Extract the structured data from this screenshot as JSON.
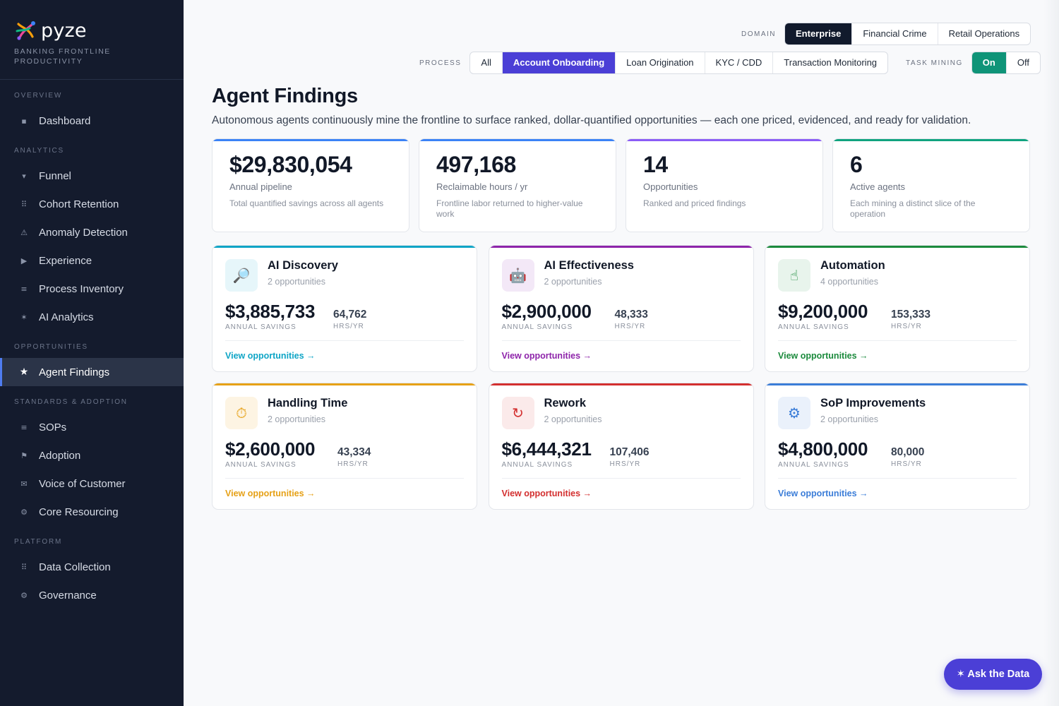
{
  "brand": {
    "name": "pyze",
    "tagline_line1": "BANKING FRONTLINE",
    "tagline_line2": "PRODUCTIVITY"
  },
  "sidebar": {
    "sections": [
      {
        "heading": "OVERVIEW",
        "items": [
          {
            "label": "Dashboard",
            "icon": "square-icon",
            "glyph": "▪"
          }
        ]
      },
      {
        "heading": "ANALYTICS",
        "items": [
          {
            "label": "Funnel",
            "icon": "funnel-icon",
            "glyph": "▾"
          },
          {
            "label": "Cohort Retention",
            "icon": "grid-icon",
            "glyph": "⠿"
          },
          {
            "label": "Anomaly Detection",
            "icon": "warning-icon",
            "glyph": "⚠"
          },
          {
            "label": "Experience",
            "icon": "play-icon",
            "glyph": "▶"
          },
          {
            "label": "Process Inventory",
            "icon": "list-icon",
            "glyph": "≡"
          },
          {
            "label": "AI Analytics",
            "icon": "sparkle-icon",
            "glyph": "✶"
          }
        ]
      },
      {
        "heading": "OPPORTUNITIES",
        "items": [
          {
            "label": "Agent Findings",
            "icon": "star-icon",
            "glyph": "★",
            "active": true
          }
        ]
      },
      {
        "heading": "STANDARDS & ADOPTION",
        "items": [
          {
            "label": "SOPs",
            "icon": "list-icon",
            "glyph": "≡"
          },
          {
            "label": "Adoption",
            "icon": "flag-icon",
            "glyph": "⚑"
          },
          {
            "label": "Voice of Customer",
            "icon": "mail-icon",
            "glyph": "✉"
          },
          {
            "label": "Core Resourcing",
            "icon": "gear-icon",
            "glyph": "⚙"
          }
        ]
      },
      {
        "heading": "PLATFORM",
        "items": [
          {
            "label": "Data Collection",
            "icon": "grid-icon",
            "glyph": "⠿"
          },
          {
            "label": "Governance",
            "icon": "gear-icon",
            "glyph": "⚙"
          }
        ]
      }
    ]
  },
  "filters": {
    "domain": {
      "label": "DOMAIN",
      "options": [
        "Enterprise",
        "Financial Crime",
        "Retail Operations"
      ],
      "selected": "Enterprise"
    },
    "process": {
      "label": "PROCESS",
      "options": [
        "All",
        "Account Onboarding",
        "Loan Origination",
        "KYC / CDD",
        "Transaction Monitoring"
      ],
      "selected": "Account Onboarding"
    },
    "task_mining": {
      "label": "TASK MINING",
      "options": [
        "On",
        "Off"
      ],
      "selected": "On"
    }
  },
  "page": {
    "title": "Agent Findings",
    "subtitle": "Autonomous agents continuously mine the frontline to surface ranked, dollar-quantified opportunities — each one priced, evidenced, and ready for validation."
  },
  "kpis": [
    {
      "value": "$29,830,054",
      "label": "Annual pipeline",
      "desc": "Total quantified savings across all agents",
      "color": "#3b82f6"
    },
    {
      "value": "497,168",
      "label": "Reclaimable hours / yr",
      "desc": "Frontline labor returned to higher-value work",
      "color": "#3b82f6"
    },
    {
      "value": "14",
      "label": "Opportunities",
      "desc": "Ranked and priced findings",
      "color": "#8b5cf6"
    },
    {
      "value": "6",
      "label": "Active agents",
      "desc": "Each mining a distinct slice of the operation",
      "color": "#10a37f"
    }
  ],
  "agents": [
    {
      "name": "AI Discovery",
      "count": "2 opportunities",
      "savings": "$3,885,733",
      "savings_label": "ANNUAL SAVINGS",
      "hours": "64,762",
      "hours_label": "HRS/YR",
      "link": "View opportunities →",
      "color": "#0ea5c6",
      "icon_bg": "#e6f6fa",
      "icon": "magnifier-icon",
      "glyph": "🔎"
    },
    {
      "name": "AI Effectiveness",
      "count": "2 opportunities",
      "savings": "$2,900,000",
      "savings_label": "ANNUAL SAVINGS",
      "hours": "48,333",
      "hours_label": "HRS/YR",
      "link": "View opportunities →",
      "color": "#8e24aa",
      "icon_bg": "#f3e8f7",
      "icon": "robot-icon",
      "glyph": "🤖"
    },
    {
      "name": "Automation",
      "count": "4 opportunities",
      "savings": "$9,200,000",
      "savings_label": "ANNUAL SAVINGS",
      "hours": "153,333",
      "hours_label": "HRS/YR",
      "link": "View opportunities →",
      "color": "#1b8a3c",
      "icon_bg": "#e8f4ec",
      "icon": "pointing-hand-icon",
      "glyph": "☝"
    },
    {
      "name": "Handling Time",
      "count": "2 opportunities",
      "savings": "$2,600,000",
      "savings_label": "ANNUAL SAVINGS",
      "hours": "43,334",
      "hours_label": "HRS/YR",
      "link": "View opportunities →",
      "color": "#e6a117",
      "icon_bg": "#fdf4e3",
      "icon": "stopwatch-icon",
      "glyph": "⏱"
    },
    {
      "name": "Rework",
      "count": "2 opportunities",
      "savings": "$6,444,321",
      "savings_label": "ANNUAL SAVINGS",
      "hours": "107,406",
      "hours_label": "HRS/YR",
      "link": "View opportunities →",
      "color": "#d32f2f",
      "icon_bg": "#fbeaea",
      "icon": "refresh-icon",
      "glyph": "↻"
    },
    {
      "name": "SoP Improvements",
      "count": "2 opportunities",
      "savings": "$4,800,000",
      "savings_label": "ANNUAL SAVINGS",
      "hours": "80,000",
      "hours_label": "HRS/YR",
      "link": "View opportunities →",
      "color": "#3b7dd8",
      "icon_bg": "#eaf1fb",
      "icon": "gear-icon",
      "glyph": "⚙"
    }
  ],
  "ask_button": {
    "label": "✶ Ask the Data"
  }
}
